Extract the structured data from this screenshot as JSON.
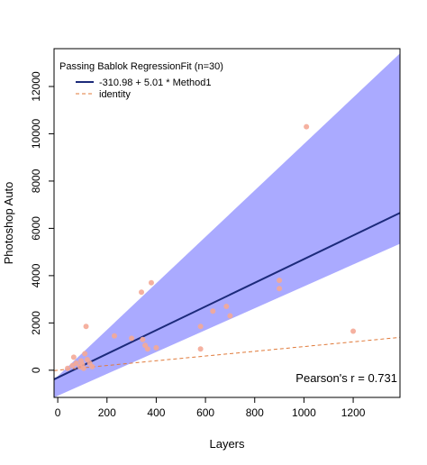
{
  "chart_data": {
    "type": "scatter",
    "xlabel": "Layers",
    "ylabel": "Photoshop Auto",
    "xlim": [
      -15,
      1390
    ],
    "ylim": [
      -1150,
      13600
    ],
    "xticks": [
      0,
      200,
      400,
      600,
      800,
      1000,
      1200
    ],
    "yticks": [
      0,
      2000,
      4000,
      6000,
      8000,
      10000,
      12000
    ],
    "legend": {
      "title": "Passing Bablok RegressionFit (n=30)",
      "position": "top-left",
      "entries": [
        {
          "label": "-310.98 + 5.01 * Method1",
          "color": "#1c2a7a",
          "style": "solid"
        },
        {
          "label": "identity",
          "color": "#e07a3a",
          "style": "dashed"
        }
      ]
    },
    "annotation": "Pearson's r = 0.731",
    "regression": {
      "intercept": -310.98,
      "slope": 5.01,
      "color": "#1c2a7a"
    },
    "identity": {
      "intercept": 0,
      "slope": 1,
      "color": "#e07a3a"
    },
    "confidence_band": {
      "color": "#aaaaff",
      "lower": [
        [
          -15,
          -1150
        ],
        [
          1390,
          5350
        ]
      ],
      "upper": [
        [
          -15,
          -400
        ],
        [
          1390,
          13400
        ]
      ]
    },
    "points_color": "#f4a896",
    "points": [
      {
        "x": 40,
        "y": 80
      },
      {
        "x": 60,
        "y": 200
      },
      {
        "x": 65,
        "y": 550
      },
      {
        "x": 75,
        "y": 300
      },
      {
        "x": 90,
        "y": 150
      },
      {
        "x": 95,
        "y": 400
      },
      {
        "x": 100,
        "y": 250
      },
      {
        "x": 105,
        "y": 80
      },
      {
        "x": 110,
        "y": 700
      },
      {
        "x": 115,
        "y": 1850
      },
      {
        "x": 120,
        "y": 450
      },
      {
        "x": 130,
        "y": 300
      },
      {
        "x": 140,
        "y": 150
      },
      {
        "x": 230,
        "y": 1450
      },
      {
        "x": 300,
        "y": 1350
      },
      {
        "x": 340,
        "y": 3300
      },
      {
        "x": 345,
        "y": 1300
      },
      {
        "x": 355,
        "y": 1050
      },
      {
        "x": 365,
        "y": 900
      },
      {
        "x": 380,
        "y": 3700
      },
      {
        "x": 400,
        "y": 950
      },
      {
        "x": 580,
        "y": 900
      },
      {
        "x": 580,
        "y": 1850
      },
      {
        "x": 630,
        "y": 2500
      },
      {
        "x": 685,
        "y": 2700
      },
      {
        "x": 700,
        "y": 2300
      },
      {
        "x": 900,
        "y": 3450
      },
      {
        "x": 900,
        "y": 3800
      },
      {
        "x": 1010,
        "y": 10300
      },
      {
        "x": 1200,
        "y": 1650
      }
    ]
  }
}
